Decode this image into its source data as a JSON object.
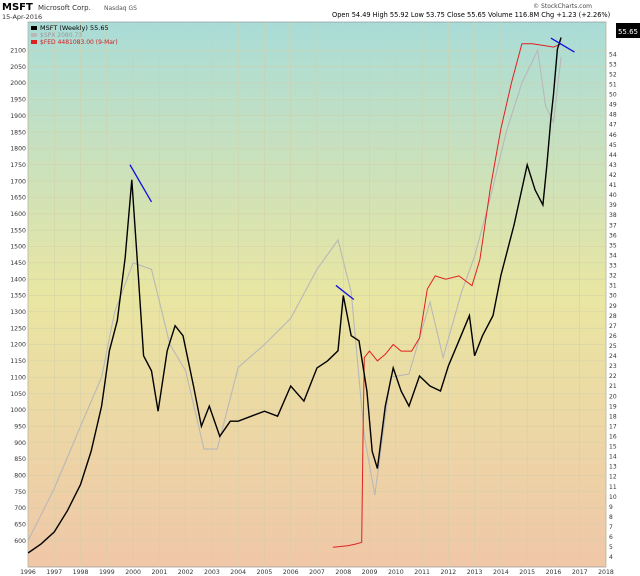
{
  "header": {
    "symbol": "MSFT",
    "company": "Microsoft Corp.",
    "exchange": "Nasdaq GS",
    "date": "15-Apr-2016",
    "quote": "Open 54.49  High 55.92  Low 53.75  Close 55.65  Volume 116.8M  Chg +1.23 (+2.26%)",
    "watermark": "© StockCharts.com"
  },
  "legend": [
    {
      "label": "MSFT (Weekly) 55.65",
      "color": "#000000"
    },
    {
      "label": "$SPX 2080.73",
      "color": "#b0b0b0"
    },
    {
      "label": "$FED 4481083.00 (9-Mar)",
      "color": "#e02020"
    }
  ],
  "colors": {
    "msft": "#000000",
    "spx": "#b8b8b8",
    "fed": "#e02020",
    "trendline": "#1010e0",
    "bg_top": "#a9dcd8",
    "bg_mid": "#e9e6a2",
    "bg_bottom": "#f0c7a8",
    "grid": "#d2cfa8"
  },
  "chart_data": {
    "type": "line",
    "x_axis": {
      "label": "",
      "range": [
        1996,
        2018
      ],
      "ticks": [
        "1996",
        "1997",
        "1998",
        "1999",
        "2000",
        "2001",
        "2002",
        "2003",
        "2004",
        "2005",
        "2006",
        "2007",
        "2008",
        "2009",
        "2010",
        "2011",
        "2012",
        "2013",
        "2014",
        "2015",
        "2016",
        "2017",
        "2018"
      ]
    },
    "y_left": {
      "label": "",
      "range": [
        550,
        2150
      ],
      "ticks": [
        600,
        650,
        700,
        750,
        800,
        850,
        900,
        950,
        1000,
        1050,
        1100,
        1150,
        1200,
        1250,
        1300,
        1350,
        1400,
        1450,
        1500,
        1550,
        1600,
        1650,
        1700,
        1750,
        1800,
        1850,
        1900,
        1950,
        2000,
        2050,
        2100
      ]
    },
    "y_right": {
      "label": "",
      "range": [
        4,
        56
      ],
      "ticks": [
        4,
        5,
        6,
        7,
        8,
        9,
        10,
        11,
        12,
        13,
        14,
        15,
        16,
        17,
        18,
        19,
        20,
        21,
        22,
        23,
        24,
        25,
        26,
        27,
        28,
        29,
        30,
        31,
        32,
        33,
        34,
        35,
        36,
        37,
        38,
        39,
        40,
        41,
        42,
        43,
        44,
        45,
        46,
        47,
        48,
        49,
        50,
        51,
        52,
        53,
        54
      ]
    },
    "last_value_tag": "55.65",
    "grid": true,
    "series": [
      {
        "name": "MSFT (Weekly) 55.65",
        "axis": "right",
        "color": "#000000",
        "x": [
          1996.0,
          1996.5,
          1997.0,
          1997.5,
          1998.0,
          1998.4,
          1998.8,
          1999.1,
          1999.4,
          1999.7,
          1999.95,
          2000.2,
          2000.4,
          2000.7,
          2000.95,
          2001.3,
          2001.6,
          2001.9,
          2002.3,
          2002.6,
          2002.9,
          2003.3,
          2003.7,
          2004.0,
          2004.5,
          2005.0,
          2005.5,
          2006.0,
          2006.5,
          2007.0,
          2007.4,
          2007.8,
          2008.0,
          2008.3,
          2008.6,
          2008.9,
          2009.1,
          2009.3,
          2009.6,
          2009.9,
          2010.2,
          2010.5,
          2010.9,
          2011.3,
          2011.7,
          2012.0,
          2012.4,
          2012.8,
          2013.0,
          2013.3,
          2013.7,
          2014.0,
          2014.5,
          2015.0,
          2015.3,
          2015.6,
          2015.75,
          2015.9,
          2016.0,
          2016.15,
          2016.29
        ],
        "y": [
          4.4,
          5.3,
          6.5,
          8.6,
          11.2,
          14.5,
          19.0,
          24.5,
          27.5,
          33.8,
          41.5,
          32.0,
          24.0,
          22.5,
          18.5,
          24.5,
          27.0,
          26.0,
          21.0,
          17.0,
          19.0,
          16.0,
          17.5,
          17.5,
          18.0,
          18.5,
          18.0,
          21.0,
          19.5,
          22.8,
          23.5,
          24.5,
          30.0,
          26.0,
          25.5,
          20.5,
          14.5,
          12.8,
          19.0,
          22.8,
          20.5,
          19.0,
          22.0,
          21.0,
          20.5,
          23.0,
          25.5,
          28.0,
          24.0,
          26.0,
          28.0,
          32.0,
          37.0,
          43.0,
          40.5,
          39.0,
          43.0,
          47.5,
          50.0,
          54.5,
          55.65
        ]
      },
      {
        "name": "$SPX 2080.73",
        "axis": "left",
        "color": "#b8b8b8",
        "x": [
          1996.0,
          1997.0,
          1998.0,
          1998.8,
          1999.3,
          2000.0,
          2000.7,
          2001.4,
          2002.0,
          2002.7,
          2003.2,
          2004.0,
          2005.0,
          2006.0,
          2007.0,
          2007.8,
          2008.3,
          2008.8,
          2009.2,
          2009.8,
          2010.5,
          2011.3,
          2011.8,
          2012.5,
          2013.0,
          2013.6,
          2014.2,
          2014.8,
          2015.4,
          2015.7,
          2016.0,
          2016.29
        ],
        "y": [
          600,
          760,
          950,
          1100,
          1300,
          1450,
          1430,
          1200,
          1120,
          880,
          880,
          1130,
          1200,
          1280,
          1430,
          1520,
          1360,
          920,
          740,
          1100,
          1110,
          1330,
          1160,
          1360,
          1470,
          1650,
          1850,
          2000,
          2100,
          1930,
          1880,
          2080
        ]
      },
      {
        "name": "$FED 4481083.00 (9-Mar)",
        "axis": "left",
        "color": "#e02020",
        "x": [
          2007.6,
          2007.9,
          2008.2,
          2008.5,
          2008.7,
          2008.75,
          2008.8,
          2009.0,
          2009.3,
          2009.6,
          2009.9,
          2010.2,
          2010.6,
          2010.9,
          2011.2,
          2011.5,
          2011.9,
          2012.4,
          2012.9,
          2013.2,
          2013.6,
          2014.0,
          2014.4,
          2014.8,
          2015.2,
          2015.6,
          2016.0,
          2016.29
        ],
        "y": [
          580,
          582,
          585,
          590,
          595,
          920,
          1160,
          1180,
          1150,
          1170,
          1200,
          1180,
          1180,
          1220,
          1370,
          1410,
          1400,
          1410,
          1380,
          1460,
          1680,
          1860,
          2000,
          2120,
          2120,
          2115,
          2110,
          2120
        ]
      }
    ],
    "annotations": [
      {
        "type": "trendline",
        "x": [
          1999.88,
          2000.7
        ],
        "y": [
          43.0,
          39.3
        ],
        "axis": "right"
      },
      {
        "type": "trendline",
        "x": [
          2007.72,
          2008.4
        ],
        "y": [
          31.0,
          29.6
        ],
        "axis": "right"
      },
      {
        "type": "trendline",
        "x": [
          2015.9,
          2016.8
        ],
        "y": [
          55.6,
          54.2
        ],
        "axis": "right"
      }
    ]
  }
}
